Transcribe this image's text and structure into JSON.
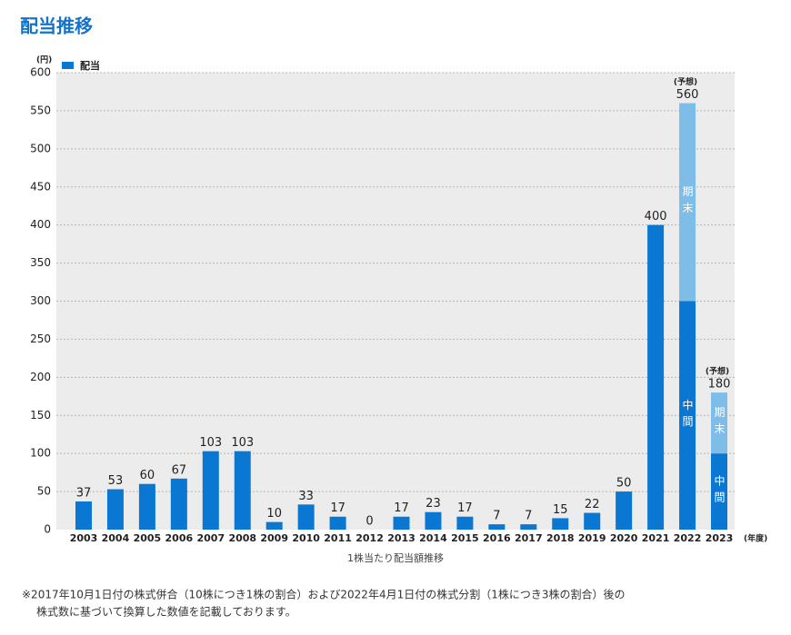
{
  "chart_data": {
    "type": "bar",
    "title": "配当推移",
    "y_unit": "(円)",
    "x_unit": "(年度)",
    "x_label": "1株当たり配当額推移",
    "categories": [
      "2003",
      "2004",
      "2005",
      "2006",
      "2007",
      "2008",
      "2009",
      "2010",
      "2011",
      "2012",
      "2013",
      "2014",
      "2015",
      "2016",
      "2017",
      "2018",
      "2019",
      "2020",
      "2021",
      "2022",
      "2023"
    ],
    "series": [
      {
        "name": "配当",
        "color": "#0a78d2",
        "values": [
          37,
          53,
          60,
          67,
          103,
          103,
          10,
          33,
          17,
          0,
          17,
          23,
          17,
          7,
          7,
          15,
          22,
          50,
          400,
          300,
          100
        ]
      }
    ],
    "forecast": {
      "label": "(予想)",
      "interim_label": "中間",
      "final_label": "期末",
      "color": "#7fbde9",
      "values": [
        null,
        null,
        null,
        null,
        null,
        null,
        null,
        null,
        null,
        null,
        null,
        null,
        null,
        null,
        null,
        null,
        null,
        null,
        null,
        260,
        80
      ],
      "totals": [
        null,
        null,
        null,
        null,
        null,
        null,
        null,
        null,
        null,
        null,
        null,
        null,
        null,
        null,
        null,
        null,
        null,
        null,
        null,
        560,
        180
      ]
    },
    "ylim": [
      0,
      600
    ],
    "yticks": [
      0,
      50,
      100,
      150,
      200,
      250,
      300,
      350,
      400,
      450,
      500,
      550,
      600
    ],
    "grid": true,
    "legend": "top-left",
    "footnote": [
      "※2017年10月1日付の株式併合（10株につき1株の割合）および2022年4月1日付の株式分割（1株につき3株の割合）後の",
      "株式数に基づいて換算した数値を記載しております。"
    ]
  }
}
